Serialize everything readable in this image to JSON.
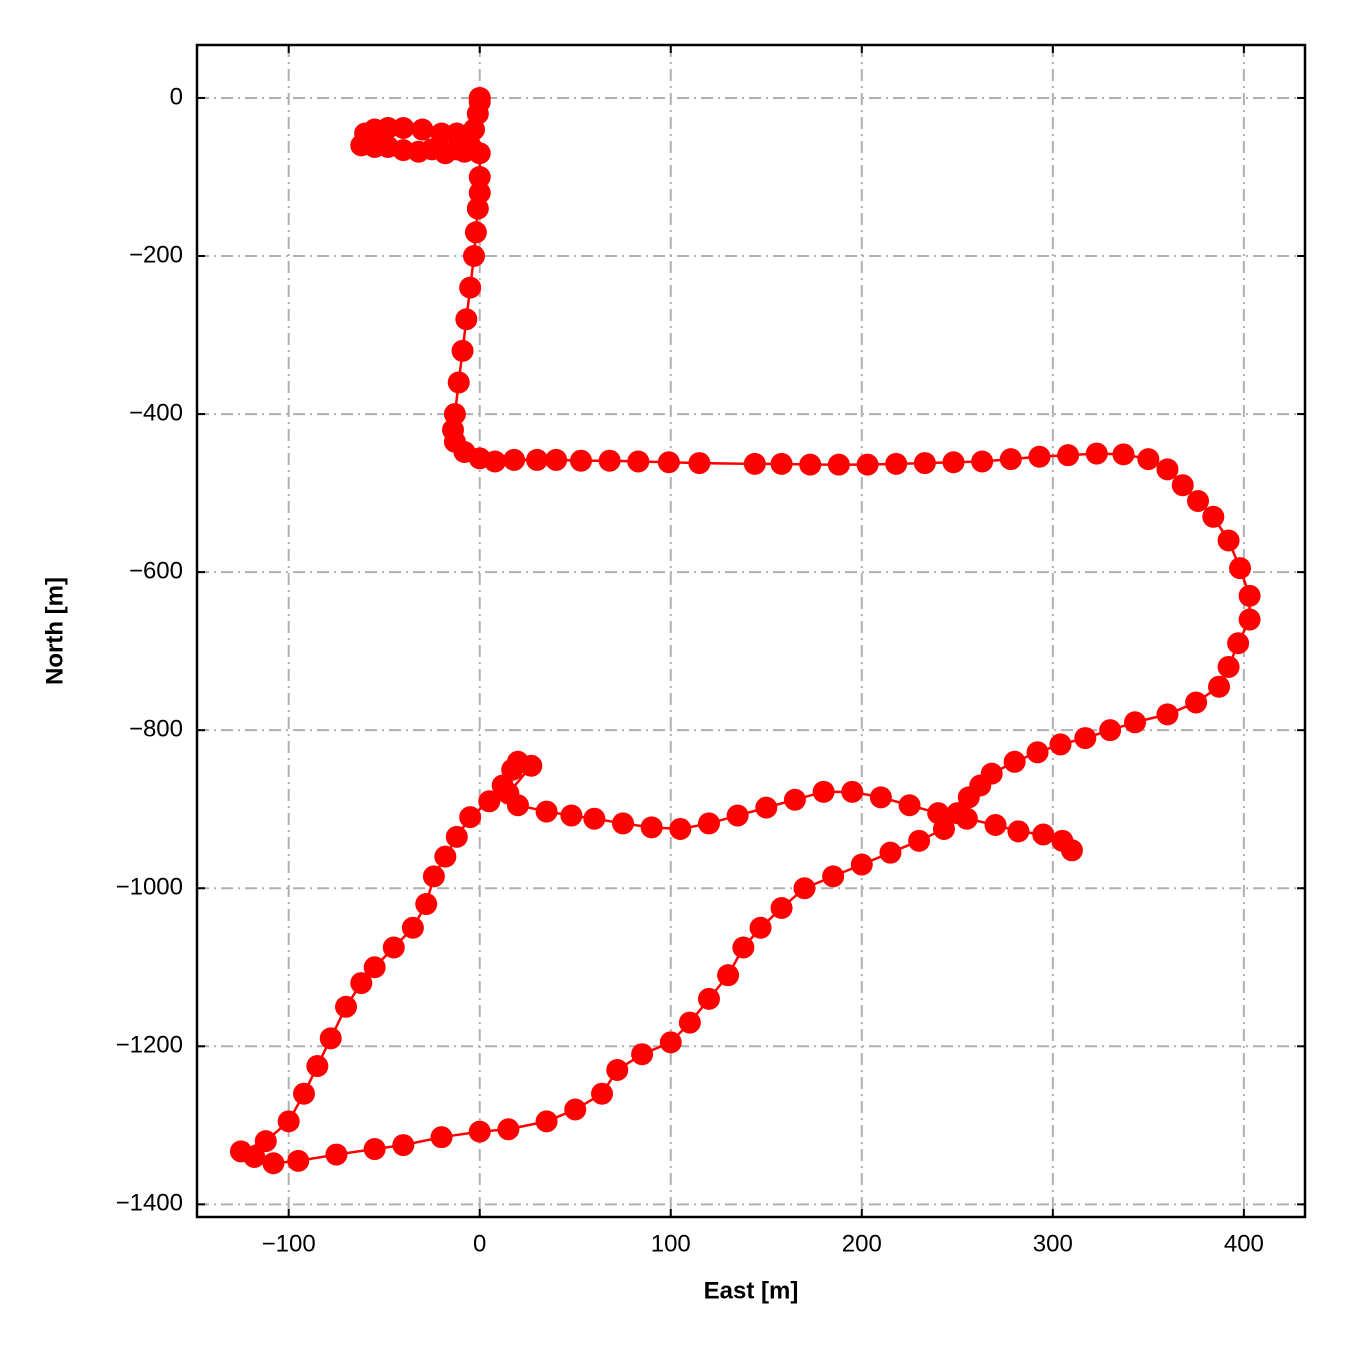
{
  "chart_data": {
    "type": "line",
    "xlabel": "East [m]",
    "ylabel": "North [m]",
    "color": "#ff0000",
    "marker": true,
    "grid": true,
    "xlim": [
      -148,
      432
    ],
    "ylim": [
      -1416,
      67
    ],
    "xticks": [
      {
        "value": -100,
        "label": "−100"
      },
      0,
      100,
      200,
      300,
      400
    ],
    "yticks": [
      {
        "value": -1400,
        "label": "−1400"
      },
      {
        "value": -1200,
        "label": "−1200"
      },
      {
        "value": -1000,
        "label": "−1000"
      },
      {
        "value": -800,
        "label": "−800"
      },
      {
        "value": -600,
        "label": "−600"
      },
      {
        "value": -400,
        "label": "−400"
      },
      {
        "value": -200,
        "label": "−200"
      },
      0
    ],
    "x": [
      0,
      0,
      -1,
      -3,
      -5,
      -8,
      -12,
      -18,
      -25,
      -32,
      -40,
      -48,
      -55,
      -62,
      -60,
      -55,
      -48,
      -40,
      -30,
      -20,
      -12,
      -6,
      0,
      0,
      0,
      -1,
      -2,
      -3,
      -5,
      -7,
      -9,
      -11,
      -13,
      -14,
      -13,
      -8,
      0,
      8,
      18,
      30,
      40,
      53,
      68,
      83,
      99,
      115,
      144,
      158,
      173,
      188,
      203,
      218,
      233,
      248,
      263,
      278,
      293,
      308,
      323,
      337,
      350,
      360,
      368,
      376,
      384,
      392,
      398,
      403,
      403,
      397,
      392,
      387,
      375,
      360,
      343,
      330,
      317,
      304,
      292,
      280,
      268,
      262,
      256,
      250,
      243,
      230,
      215,
      200,
      185,
      170,
      158,
      147,
      138,
      130,
      120,
      110,
      100,
      85,
      72,
      64,
      50,
      35,
      15,
      0,
      -20,
      -40,
      -55,
      -75,
      -95,
      -108,
      -118,
      -125,
      -112,
      -100,
      -92,
      -85,
      -78,
      -70,
      -62,
      -55,
      -45,
      -35,
      -28,
      -24,
      -18,
      -12,
      -5,
      5,
      12,
      17,
      20,
      27,
      15,
      20,
      35,
      48,
      60,
      75,
      90,
      105,
      120,
      135,
      150,
      165,
      180,
      195,
      210,
      225,
      240,
      255,
      270,
      282,
      295,
      305,
      310
    ],
    "values": [
      0,
      -5,
      -20,
      -40,
      -60,
      -68,
      -65,
      -70,
      -65,
      -68,
      -66,
      -62,
      -62,
      -60,
      -45,
      -40,
      -38,
      -38,
      -40,
      -45,
      -45,
      -55,
      -70,
      -100,
      -120,
      -140,
      -170,
      -200,
      -240,
      -280,
      -320,
      -360,
      -400,
      -420,
      -435,
      -448,
      -456,
      -460,
      -458,
      -458,
      -458,
      -459,
      -459,
      -460,
      -461,
      -462,
      -463,
      -463,
      -464,
      -464,
      -464,
      -463,
      -462,
      -461,
      -460,
      -457,
      -454,
      -452,
      -450,
      -451,
      -457,
      -470,
      -490,
      -510,
      -530,
      -560,
      -595,
      -630,
      -660,
      -690,
      -720,
      -745,
      -765,
      -780,
      -790,
      -800,
      -810,
      -818,
      -828,
      -840,
      -855,
      -870,
      -885,
      -905,
      -925,
      -940,
      -955,
      -970,
      -985,
      -1000,
      -1025,
      -1050,
      -1075,
      -1110,
      -1140,
      -1170,
      -1195,
      -1210,
      -1230,
      -1260,
      -1280,
      -1295,
      -1305,
      -1308,
      -1315,
      -1325,
      -1330,
      -1337,
      -1345,
      -1348,
      -1340,
      -1333,
      -1320,
      -1295,
      -1260,
      -1225,
      -1190,
      -1150,
      -1120,
      -1100,
      -1075,
      -1050,
      -1020,
      -985,
      -960,
      -935,
      -910,
      -890,
      -870,
      -850,
      -840,
      -845,
      -880,
      -895,
      -903,
      -908,
      -912,
      -918,
      -923,
      -925,
      -918,
      -908,
      -898,
      -888,
      -878,
      -878,
      -885,
      -895,
      -905,
      -912,
      -920,
      -928,
      -932,
      -940,
      -952
    ]
  }
}
